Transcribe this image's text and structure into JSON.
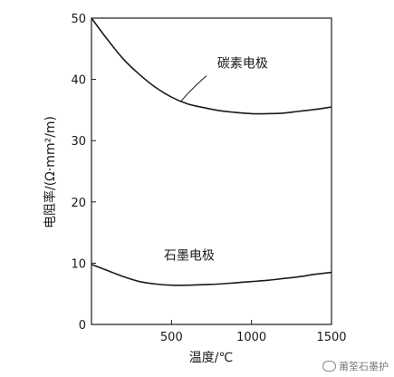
{
  "chart_data": {
    "type": "line",
    "xlabel": "温度/℃",
    "ylabel": "电阻率/(Ω·mm²/m)",
    "xlim": [
      0,
      1500
    ],
    "ylim": [
      0,
      50
    ],
    "x_ticks": [
      500,
      1000,
      1500
    ],
    "y_ticks": [
      0,
      10,
      20,
      30,
      40,
      50
    ],
    "x_tick_labels": [
      "500",
      "1000",
      "1500"
    ],
    "y_tick_labels": [
      "0",
      "10",
      "20",
      "30",
      "40",
      "50"
    ],
    "grid": false,
    "series": [
      {
        "name": "碳素电极",
        "x": [
          0,
          100,
          200,
          300,
          400,
          500,
          600,
          700,
          800,
          900,
          1000,
          1100,
          1200,
          1300,
          1400,
          1500
        ],
        "y": [
          50,
          46.5,
          43.3,
          40.8,
          38.7,
          37.1,
          36.0,
          35.4,
          34.9,
          34.6,
          34.4,
          34.4,
          34.5,
          34.8,
          35.1,
          35.5
        ]
      },
      {
        "name": "石墨电极",
        "x": [
          0,
          100,
          200,
          300,
          400,
          500,
          600,
          700,
          800,
          900,
          1000,
          1100,
          1200,
          1300,
          1400,
          1500
        ],
        "y": [
          9.8,
          8.8,
          7.8,
          7.0,
          6.6,
          6.4,
          6.4,
          6.5,
          6.6,
          6.8,
          7.0,
          7.2,
          7.5,
          7.8,
          8.2,
          8.5
        ]
      }
    ],
    "annotations": [
      {
        "text": "碳素电极",
        "series": "碳素电极",
        "at_x": 560
      },
      {
        "text": "石墨电极",
        "series": "石墨电极",
        "at_x": 520
      }
    ]
  },
  "watermark": {
    "text": "莆筌石墨护"
  }
}
